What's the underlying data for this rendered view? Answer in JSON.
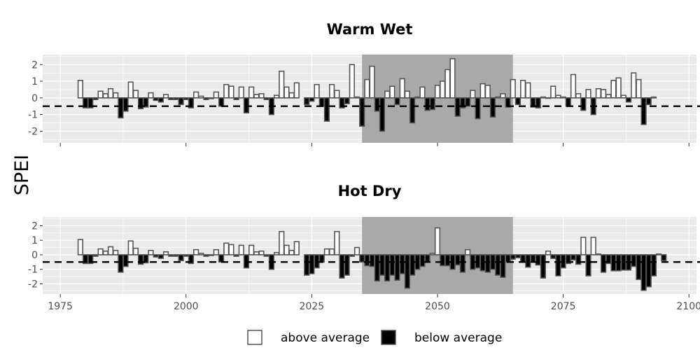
{
  "chart_data": {
    "type": "bar",
    "ylabel": "SPEI",
    "xlabel": "",
    "x_range": [
      1971.5,
      2101.5
    ],
    "x_ticks": [
      1975,
      2000,
      2025,
      2050,
      2075,
      2100
    ],
    "ylim": [
      -2.7,
      2.6
    ],
    "y_ticks": [
      -2,
      -1,
      0,
      1,
      2
    ],
    "y_tick_labels": [
      "-2",
      "-1",
      "0",
      "1",
      "2"
    ],
    "threshold_line": -0.5,
    "highlight_range": [
      2035,
      2065
    ],
    "grid": true,
    "legend": {
      "position": "bottom",
      "entries": [
        {
          "label": "above average",
          "fill": "#ffffff"
        },
        {
          "label": "below average",
          "fill": "#000000"
        }
      ]
    },
    "colors": {
      "panel_bg": "#ebebeb",
      "highlight": "#a9a9a9",
      "above": "#ffffff",
      "below": "#000000",
      "bar_edge": "#555555"
    },
    "panels": [
      {
        "title": "Warm Wet",
        "years_start": 1979,
        "years_end": 2099,
        "values": [
          1.05,
          -0.6,
          -0.6,
          -0.1,
          0.4,
          0.25,
          0.55,
          0.3,
          -1.2,
          -0.8,
          0.95,
          0.45,
          -0.65,
          -0.55,
          0.3,
          -0.15,
          -0.25,
          0.2,
          -0.1,
          -0.1,
          -0.4,
          -0.1,
          -0.6,
          0.35,
          0.1,
          -0.1,
          -0.05,
          0.35,
          -0.5,
          0.8,
          0.7,
          -0.1,
          0.65,
          -0.9,
          0.65,
          0.2,
          0.25,
          -0.1,
          -1.0,
          0.15,
          1.6,
          0.65,
          0.3,
          0.9,
          null,
          -0.4,
          -0.2,
          0.8,
          -0.5,
          -1.4,
          0.8,
          0.45,
          -0.6,
          -0.35,
          2.0,
          0.05,
          -1.7,
          1.1,
          1.9,
          -0.8,
          -2.0,
          0.4,
          0.7,
          -0.4,
          1.15,
          0.4,
          -1.5,
          0.05,
          0.65,
          -0.75,
          -0.7,
          0.75,
          1.0,
          1.7,
          2.35,
          -1.1,
          -0.6,
          -0.5,
          0.45,
          -1.25,
          0.85,
          0.75,
          -1.15,
          0.05,
          0.25,
          -0.55,
          1.1,
          -0.4,
          1.05,
          0.9,
          -0.55,
          -0.6,
          0.05,
          0.0,
          0.7,
          0.15,
          0.05,
          -0.5,
          1.4,
          0.25,
          -0.75,
          0.5,
          -1.0,
          0.55,
          0.5,
          0.2,
          1.05,
          1.2,
          0.15,
          -0.25,
          1.5,
          1.1,
          -1.6,
          -0.4,
          0.05,
          null,
          null,
          null,
          null,
          null,
          null
        ]
      },
      {
        "title": "Hot Dry",
        "years_start": 1979,
        "years_end": 2099,
        "values": [
          1.05,
          -0.6,
          -0.6,
          -0.1,
          0.4,
          0.25,
          0.55,
          0.3,
          -1.2,
          -0.8,
          0.95,
          0.45,
          -0.65,
          -0.55,
          0.3,
          -0.15,
          -0.25,
          0.2,
          -0.1,
          -0.1,
          -0.4,
          -0.1,
          -0.6,
          0.35,
          0.1,
          -0.1,
          -0.05,
          0.35,
          -0.5,
          0.8,
          0.7,
          -0.1,
          0.65,
          -0.9,
          0.65,
          0.2,
          0.25,
          -0.1,
          -1.0,
          0.15,
          1.6,
          0.65,
          0.3,
          0.9,
          null,
          -1.4,
          -1.3,
          -0.9,
          -0.5,
          0.4,
          0.4,
          1.6,
          -1.6,
          -1.4,
          -0.1,
          0.5,
          -0.5,
          -0.75,
          -0.8,
          -1.8,
          -1.4,
          -1.8,
          -1.4,
          -1.75,
          -1.3,
          -2.3,
          -1.4,
          -1.0,
          -0.8,
          -0.5,
          0.1,
          1.85,
          -0.75,
          -0.75,
          -1.0,
          -0.7,
          -1.2,
          0.35,
          -1.0,
          -0.9,
          -1.1,
          -1.2,
          -1.0,
          -1.4,
          -1.55,
          -0.5,
          -0.3,
          -0.2,
          -0.5,
          -0.85,
          -0.5,
          -0.7,
          -1.6,
          0.25,
          -0.25,
          -1.45,
          -0.9,
          -0.6,
          -0.35,
          -0.65,
          1.2,
          -1.45,
          1.2,
          0.05,
          -1.2,
          -0.6,
          -1.1,
          -1.1,
          -1.05,
          -1.05,
          -0.8,
          -1.7,
          -2.45,
          -2.2,
          -1.45,
          0.05,
          -0.4,
          null,
          null,
          null,
          null
        ]
      }
    ]
  }
}
